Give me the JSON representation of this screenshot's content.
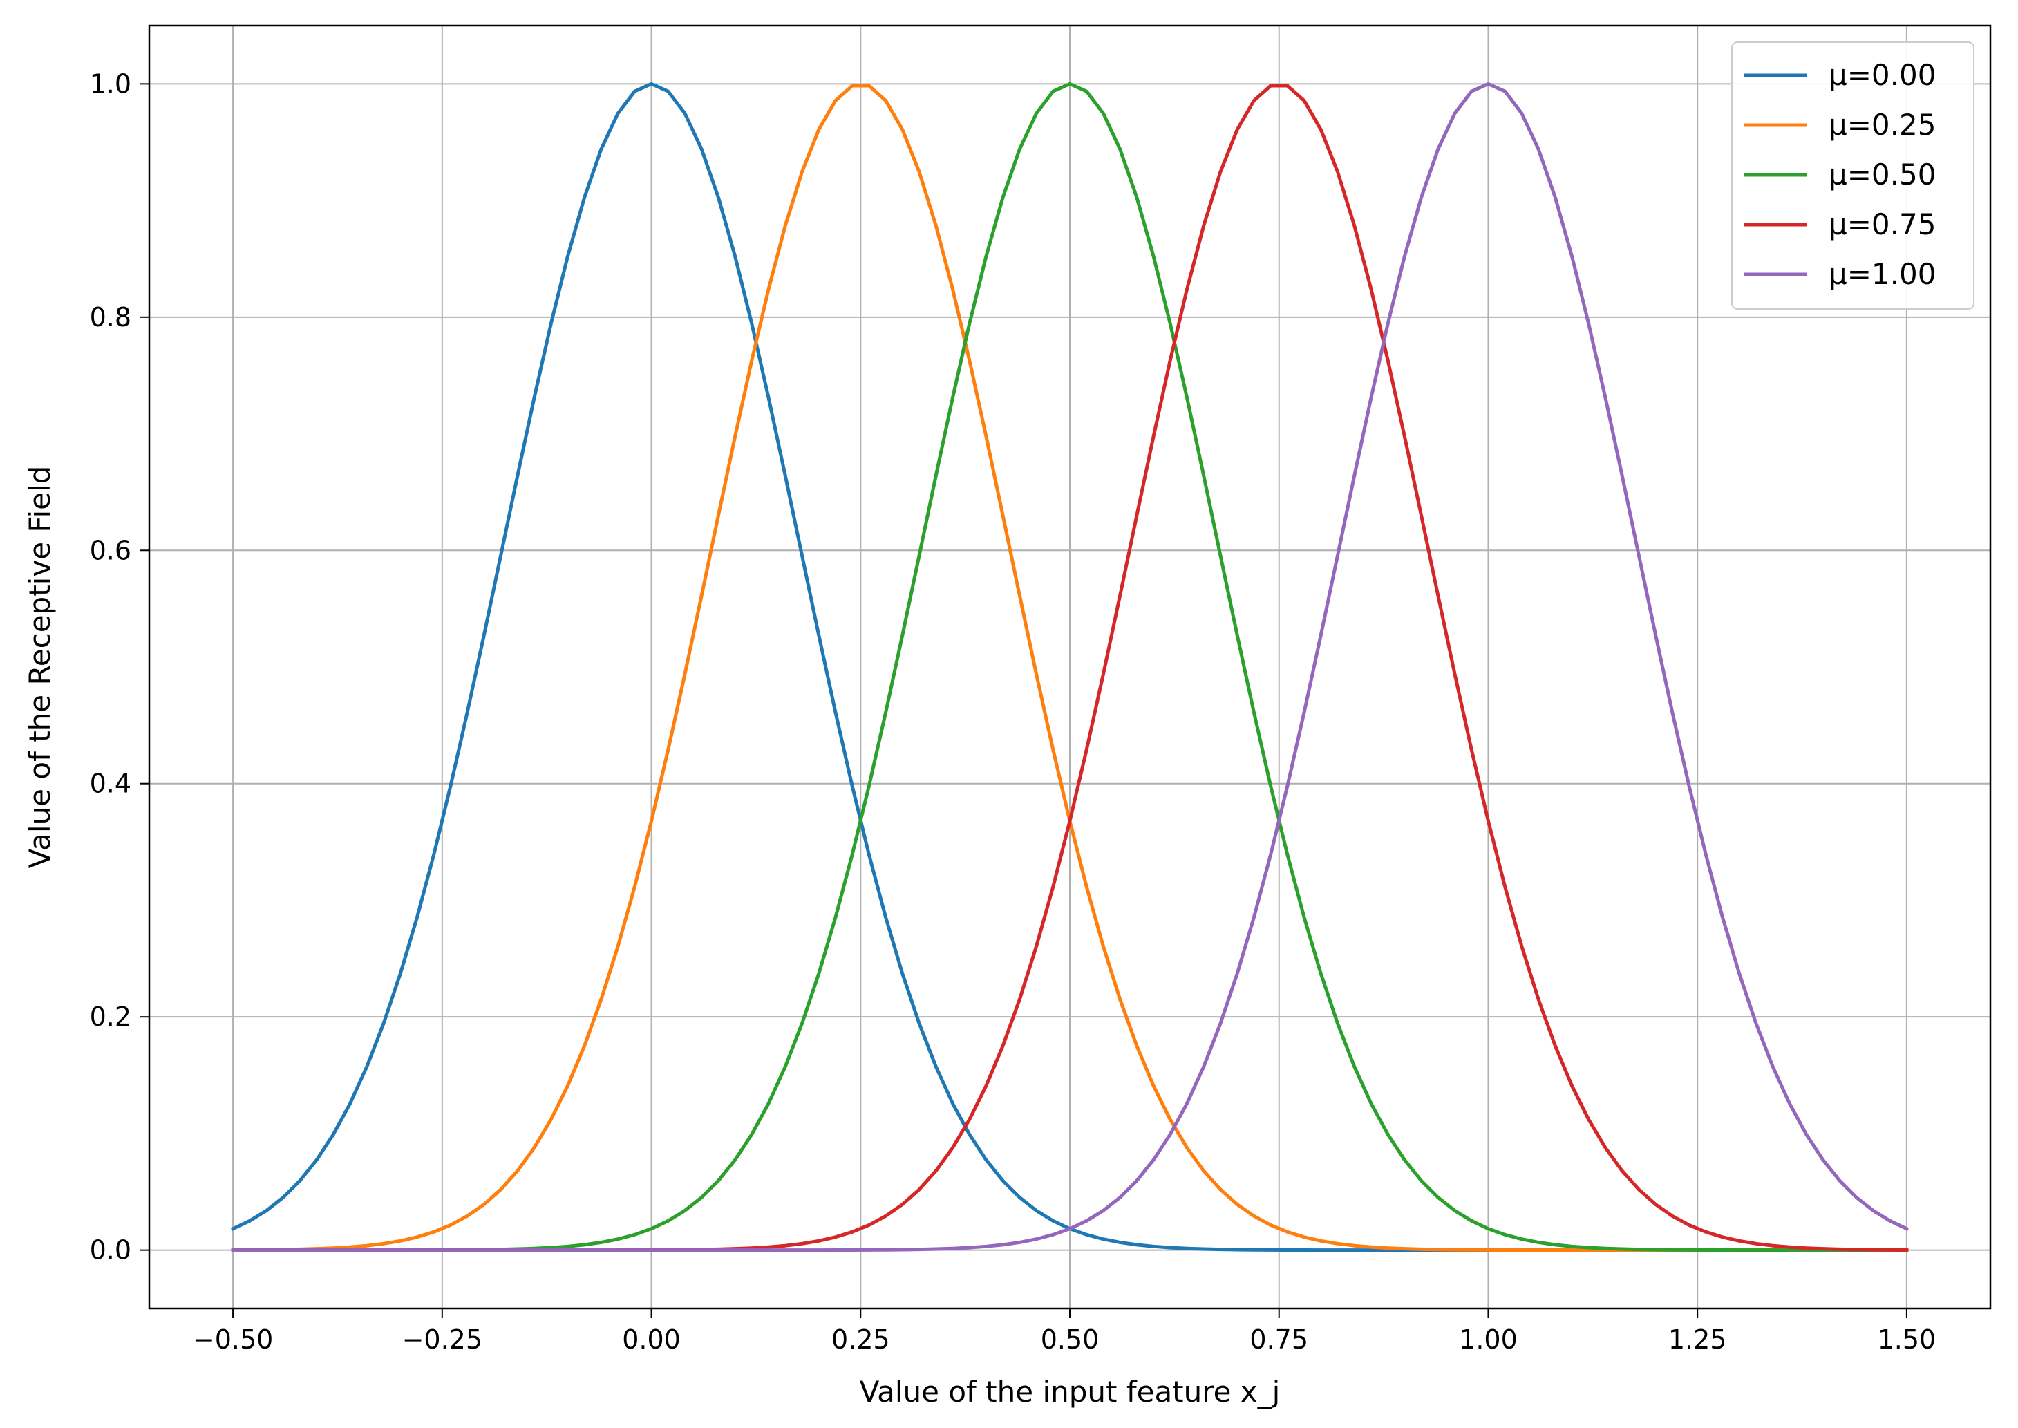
{
  "chart_data": {
    "type": "line",
    "title": "",
    "xlabel": "Value of the input feature x_j",
    "ylabel": "Value of the Receptive Field",
    "xlim": [
      -0.6,
      1.6
    ],
    "ylim": [
      -0.05,
      1.05
    ],
    "x_ticks": [
      -0.5,
      -0.25,
      0.0,
      0.25,
      0.5,
      0.75,
      1.0,
      1.25,
      1.5
    ],
    "x_tick_labels": [
      "−0.50",
      "−0.25",
      "0.00",
      "0.25",
      "0.50",
      "0.75",
      "1.00",
      "1.25",
      "1.50"
    ],
    "y_ticks": [
      0.0,
      0.2,
      0.4,
      0.6,
      0.8,
      1.0
    ],
    "y_tick_labels": [
      "0.0",
      "0.2",
      "0.4",
      "0.6",
      "0.8",
      "1.0"
    ],
    "grid": true,
    "legend_position": "top-right",
    "function": "exp(-(x - mu)^2 / (2 * sigma^2))",
    "sigma": 0.1768,
    "x_range": [
      -0.5,
      1.5
    ],
    "series": [
      {
        "name": "μ=0.00",
        "mu": 0.0,
        "color": "#1f77b4",
        "x": [
          -0.5,
          -0.4,
          -0.3,
          -0.2,
          -0.1,
          0.0,
          0.1,
          0.2,
          0.3,
          0.4,
          0.5,
          0.6,
          0.7,
          0.8,
          0.9,
          1.0,
          1.1,
          1.2,
          1.3,
          1.4,
          1.5
        ],
        "values": [
          0.018,
          0.077,
          0.237,
          0.527,
          0.852,
          1.0,
          0.852,
          0.527,
          0.237,
          0.077,
          0.018,
          0.003,
          0.0,
          0.0,
          0.0,
          0.0,
          0.0,
          0.0,
          0.0,
          0.0,
          0.0
        ]
      },
      {
        "name": "μ=0.25",
        "mu": 0.25,
        "color": "#ff7f0e",
        "x": [
          -0.5,
          -0.4,
          -0.3,
          -0.2,
          -0.1,
          0.0,
          0.1,
          0.2,
          0.3,
          0.4,
          0.5,
          0.6,
          0.7,
          0.8,
          0.9,
          1.0,
          1.1,
          1.2,
          1.3,
          1.4,
          1.5
        ],
        "values": [
          0.0,
          0.001,
          0.008,
          0.039,
          0.141,
          0.368,
          0.698,
          0.961,
          0.961,
          0.698,
          0.368,
          0.141,
          0.039,
          0.008,
          0.001,
          0.0,
          0.0,
          0.0,
          0.0,
          0.0,
          0.0
        ]
      },
      {
        "name": "μ=0.50",
        "mu": 0.5,
        "color": "#2ca02c",
        "x": [
          -0.5,
          -0.4,
          -0.3,
          -0.2,
          -0.1,
          0.0,
          0.1,
          0.2,
          0.3,
          0.4,
          0.5,
          0.6,
          0.7,
          0.8,
          0.9,
          1.0,
          1.1,
          1.2,
          1.3,
          1.4,
          1.5
        ],
        "values": [
          0.0,
          0.0,
          0.0,
          0.0,
          0.003,
          0.018,
          0.077,
          0.237,
          0.527,
          0.852,
          1.0,
          0.852,
          0.527,
          0.237,
          0.077,
          0.018,
          0.003,
          0.0,
          0.0,
          0.0,
          0.0
        ]
      },
      {
        "name": "μ=0.75",
        "mu": 0.75,
        "color": "#d62728",
        "x": [
          -0.5,
          -0.4,
          -0.3,
          -0.2,
          -0.1,
          0.0,
          0.1,
          0.2,
          0.3,
          0.4,
          0.5,
          0.6,
          0.7,
          0.8,
          0.9,
          1.0,
          1.1,
          1.2,
          1.3,
          1.4,
          1.5
        ],
        "values": [
          0.0,
          0.0,
          0.0,
          0.0,
          0.0,
          0.0,
          0.001,
          0.008,
          0.039,
          0.141,
          0.368,
          0.698,
          0.961,
          0.961,
          0.698,
          0.368,
          0.141,
          0.039,
          0.008,
          0.001,
          0.0
        ]
      },
      {
        "name": "μ=1.00",
        "mu": 1.0,
        "color": "#9467bd",
        "x": [
          -0.5,
          -0.4,
          -0.3,
          -0.2,
          -0.1,
          0.0,
          0.1,
          0.2,
          0.3,
          0.4,
          0.5,
          0.6,
          0.7,
          0.8,
          0.9,
          1.0,
          1.1,
          1.2,
          1.3,
          1.4,
          1.5
        ],
        "values": [
          0.0,
          0.0,
          0.0,
          0.0,
          0.0,
          0.0,
          0.0,
          0.0,
          0.0,
          0.003,
          0.018,
          0.077,
          0.237,
          0.527,
          0.852,
          1.0,
          0.852,
          0.527,
          0.237,
          0.077,
          0.018
        ]
      }
    ]
  },
  "colors": {
    "grid": "#b0b0b0",
    "axes_frame": "#000000",
    "legend_border": "#cccccc"
  }
}
